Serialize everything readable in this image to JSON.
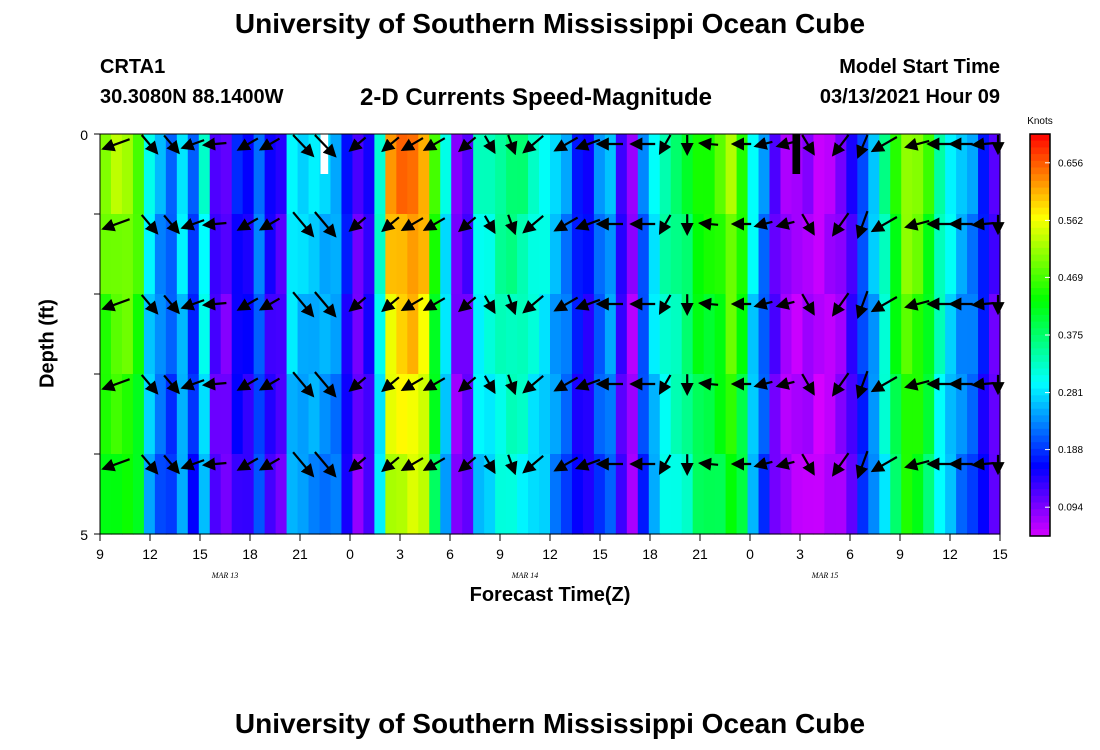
{
  "header": {
    "title": "University of Southern Mississippi Ocean Cube",
    "station": "CRTA1",
    "coords": "30.3080N 88.1400W",
    "chart_title": "2-D Currents Speed-Magnitude",
    "model_start_label": "Model Start Time",
    "model_start_value": "03/13/2021 Hour 09"
  },
  "footer": {
    "title": "University of Southern Mississippi Ocean Cube"
  },
  "chart_data": {
    "type": "heatmap",
    "title": "2-D Currents Speed-Magnitude",
    "xlabel": "Forecast Time(Z)",
    "ylabel": "Depth (ft)",
    "ylim": [
      0,
      5
    ],
    "y_ticks": [
      "0",
      "5"
    ],
    "x_tick_labels": [
      "9",
      "12",
      "15",
      "18",
      "21",
      "0",
      "3",
      "6",
      "9",
      "12",
      "15",
      "18",
      "21",
      "0",
      "3",
      "6",
      "9",
      "12",
      "15"
    ],
    "day_labels": [
      "MAR 13",
      "MAR 14",
      "MAR 15"
    ],
    "colorbar": {
      "unit": "Knots",
      "ticks": [
        "0.656",
        "0.562",
        "0.469",
        "0.375",
        "0.281",
        "0.188",
        "0.094"
      ],
      "range": [
        0.047,
        0.703
      ]
    },
    "depth_layers": 5,
    "hourly_speed_knots": [
      0.5,
      0.52,
      0.52,
      0.48,
      0.3,
      0.25,
      0.22,
      0.29,
      0.2,
      0.32,
      0.13,
      0.11,
      0.17,
      0.16,
      0.23,
      0.15,
      0.13,
      0.3,
      0.28,
      0.28,
      0.27,
      0.26,
      0.17,
      0.11,
      0.15,
      0.33,
      0.62,
      0.64,
      0.65,
      0.62,
      0.46,
      0.3,
      0.1,
      0.12,
      0.32,
      0.33,
      0.36,
      0.37,
      0.36,
      0.33,
      0.31,
      0.27,
      0.24,
      0.18,
      0.16,
      0.23,
      0.26,
      0.14,
      0.08,
      0.22,
      0.3,
      0.35,
      0.37,
      0.4,
      0.45,
      0.45,
      0.47,
      0.52,
      0.46,
      0.3,
      0.23,
      0.12,
      0.08,
      0.07,
      0.08,
      0.06,
      0.07,
      0.09,
      0.14,
      0.21,
      0.27,
      0.35,
      0.45,
      0.52,
      0.5,
      0.45,
      0.35,
      0.3,
      0.26,
      0.24,
      0.18,
      0.12
    ],
    "arrows_hours": [
      1,
      4,
      6,
      8,
      10,
      13,
      15,
      18,
      20,
      23,
      26,
      28,
      30,
      33,
      35,
      37,
      39,
      42,
      44,
      46,
      49,
      51,
      53,
      55,
      58,
      60,
      62,
      64,
      67,
      69,
      71,
      74,
      76,
      78,
      80,
      82
    ],
    "arrow_direction_deg": [
      250,
      140,
      140,
      250,
      265,
      240,
      240,
      140,
      140,
      230,
      230,
      240,
      240,
      230,
      150,
      160,
      230,
      240,
      250,
      270,
      270,
      210,
      180,
      275,
      270,
      255,
      255,
      150,
      215,
      200,
      240,
      255,
      270,
      270,
      265,
      205
    ],
    "arrow_speed_knots": [
      0.5,
      0.35,
      0.3,
      0.32,
      0.3,
      0.3,
      0.27,
      0.6,
      0.62,
      0.22,
      0.25,
      0.34,
      0.33,
      0.24,
      0.18,
      0.2,
      0.4,
      0.42,
      0.37,
      0.4,
      0.35,
      0.25,
      0.2,
      0.14,
      0.15,
      0.12,
      0.12,
      0.32,
      0.45,
      0.48,
      0.5,
      0.35,
      0.3,
      0.3,
      0.24,
      0.22
    ],
    "anomalies": [
      {
        "hour": 20,
        "color": "#ffffff"
      },
      {
        "hour": 63,
        "color": "#000000"
      }
    ]
  }
}
